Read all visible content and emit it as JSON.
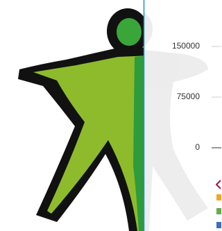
{
  "axis": {
    "tick_labels": [
      "150000",
      "75000",
      "0"
    ]
  }
}
